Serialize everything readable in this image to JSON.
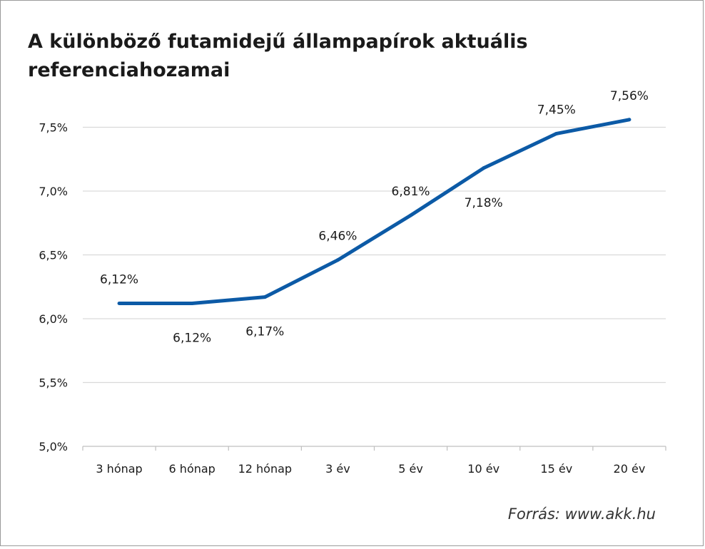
{
  "title": "A különböző futamidejű állampapírok aktuális referenciahozamai",
  "source": "Forrás: www.akk.hu",
  "colors": {
    "line": "#0c5aa6",
    "grid": "#d9d9d9",
    "text": "#1a1a1a"
  },
  "chart_data": {
    "type": "line",
    "title": "A különböző futamidejű állampapírok aktuális referenciahozamai",
    "categories": [
      "3 hónap",
      "6 hónap",
      "12 hónap",
      "3 év",
      "5 év",
      "10 év",
      "15 év",
      "20 év"
    ],
    "series": [
      {
        "values": [
          6.12,
          6.12,
          6.17,
          6.46,
          6.81,
          7.18,
          7.45,
          7.56
        ],
        "labels": [
          "6,12%",
          "6,12%",
          "6,17%",
          "6,46%",
          "6,81%",
          "7,18%",
          "7,45%",
          "7,56%"
        ]
      }
    ],
    "yticks": [
      5.0,
      5.5,
      6.0,
      6.5,
      7.0,
      7.5
    ],
    "ytick_labels": [
      "5,0%",
      "5,5%",
      "6,0%",
      "6,5%",
      "7,0%",
      "7,5%"
    ],
    "ylim": [
      5.0,
      7.7
    ],
    "grid": true,
    "legend": "none"
  }
}
